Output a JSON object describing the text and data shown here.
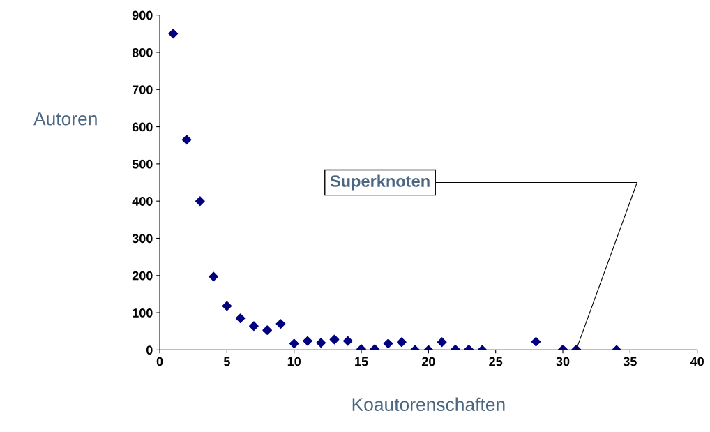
{
  "chart_data": {
    "type": "scatter",
    "xlabel": "Koautorenschaften",
    "ylabel": "Autoren",
    "x": [
      1,
      2,
      3,
      4,
      5,
      6,
      7,
      8,
      9,
      10,
      11,
      12,
      13,
      14,
      15,
      16,
      17,
      18,
      19,
      20,
      21,
      22,
      23,
      24,
      28,
      30,
      31,
      34
    ],
    "series": [
      {
        "color": "#000080",
        "values": [
          850,
          565,
          400,
          197,
          118,
          85,
          64,
          53,
          70,
          17,
          24,
          19,
          28,
          24,
          2,
          2,
          17,
          21,
          0,
          0,
          21,
          1,
          1,
          0,
          22,
          1,
          1,
          0
        ]
      }
    ],
    "xlim": [
      0,
      40
    ],
    "xticks": [
      0,
      5,
      10,
      15,
      20,
      25,
      30,
      35,
      40
    ],
    "ylim": [
      0,
      900
    ],
    "yticks": [
      0,
      100,
      200,
      300,
      400,
      500,
      600,
      700,
      800,
      900
    ],
    "grid": false,
    "legend": false,
    "marker": "diamond",
    "annotations": [
      {
        "text": "Superknoten",
        "x": 31,
        "y": 1
      }
    ]
  }
}
